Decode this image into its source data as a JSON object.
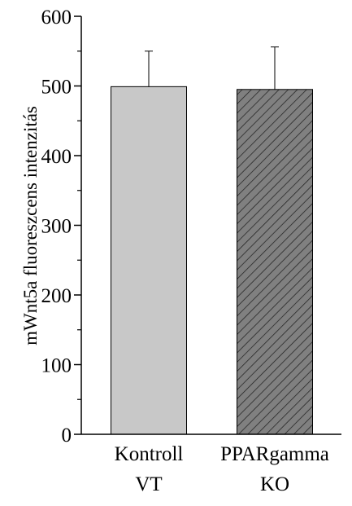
{
  "chart_data": {
    "type": "bar",
    "y_label": "mWnt5a fluoreszcens intenzitás",
    "categories": [
      [
        "Kontroll",
        "VT"
      ],
      [
        "PPARgamma",
        "KO"
      ]
    ],
    "values": [
      499,
      495
    ],
    "errors": [
      51,
      61
    ],
    "colors": [
      "#c8c8c8",
      "#808080"
    ],
    "hatch": [
      false,
      true
    ],
    "ylim": [
      0,
      600
    ],
    "yticks": [
      0,
      100,
      200,
      300,
      400,
      500,
      600
    ],
    "minor_yticks": [
      50,
      150,
      250,
      350,
      450,
      550
    ]
  }
}
